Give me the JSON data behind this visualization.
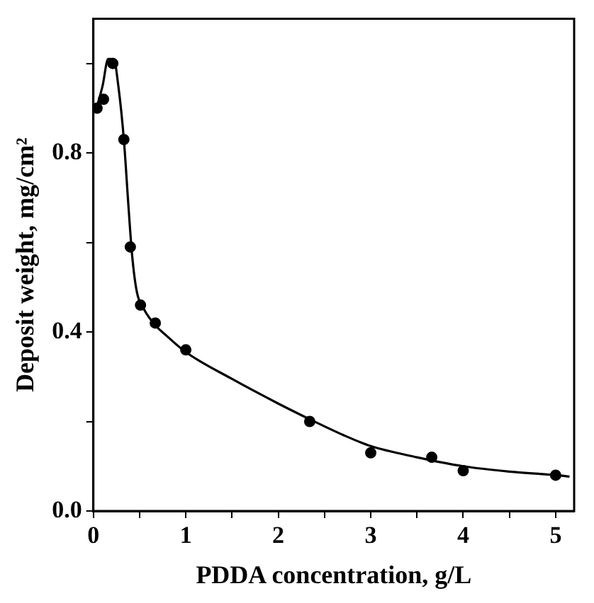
{
  "chart_data": {
    "type": "scatter",
    "xlabel": "PDDA concentration, g/L",
    "ylabel": "Deposit weight, mg/cm²",
    "xlim": [
      0,
      5.2
    ],
    "ylim": [
      0,
      1.1
    ],
    "xticks": [
      0,
      {
        "value": 0.5,
        "label": null
      },
      1,
      {
        "value": 1.5,
        "label": null
      },
      2,
      {
        "value": 2.5,
        "label": null
      },
      3,
      {
        "value": 3.5,
        "label": null
      },
      4,
      {
        "value": 4.5,
        "label": null
      },
      5
    ],
    "yticks": [
      {
        "value": 0,
        "label": "0.0"
      },
      {
        "value": 0.2,
        "label": null
      },
      0.4,
      {
        "value": 0.6,
        "label": null
      },
      0.8,
      {
        "value": 1.0,
        "label": null
      }
    ],
    "grid": false,
    "legend": false,
    "marker": "circle",
    "series": [
      {
        "type": "scatter",
        "color": "#000000",
        "x": [
          0.04,
          0.11,
          0.21,
          0.33,
          0.4,
          0.51,
          0.67,
          1.0,
          2.34,
          3.0,
          3.66,
          4.0,
          5.0
        ],
        "values": [
          0.9,
          0.92,
          1.0,
          0.83,
          0.59,
          0.46,
          0.42,
          0.36,
          0.2,
          0.13,
          0.12,
          0.09,
          0.08
        ]
      },
      {
        "type": "line",
        "color": "#000000",
        "marker": "none",
        "line_style": "solid",
        "x": [
          0.02,
          0.1,
          0.16,
          0.22,
          0.27,
          0.33,
          0.38,
          0.42,
          0.47,
          0.55,
          0.67,
          0.8,
          1,
          1.5,
          2,
          2.34,
          2.7,
          3,
          3.5,
          4,
          4.5,
          5,
          5.15
        ],
        "values": [
          0.89,
          0.95,
          1.01,
          1.01,
          0.95,
          0.83,
          0.68,
          0.57,
          0.49,
          0.45,
          0.415,
          0.39,
          0.355,
          0.295,
          0.24,
          0.205,
          0.17,
          0.145,
          0.12,
          0.1,
          0.088,
          0.08,
          0.077
        ]
      }
    ]
  }
}
